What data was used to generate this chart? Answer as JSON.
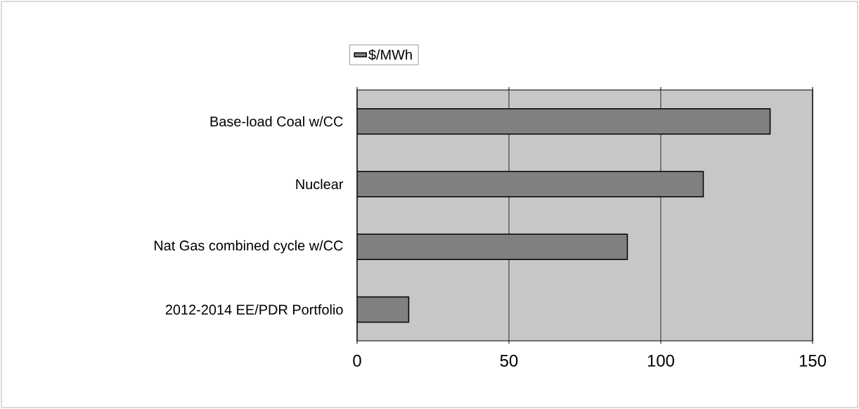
{
  "chart_data": {
    "type": "bar",
    "orientation": "horizontal",
    "categories": [
      "Base-load Coal w/CC",
      "Nuclear",
      "Nat Gas combined cycle w/CC",
      "2012-2014 EE/PDR Portfolio"
    ],
    "series": [
      {
        "name": "$/MWh",
        "color": "#808080",
        "values": [
          136,
          114,
          89,
          17
        ]
      }
    ],
    "xlim": [
      0,
      150
    ],
    "xticks": [
      0,
      50,
      100,
      150
    ],
    "grid": "x",
    "legend": "top"
  }
}
